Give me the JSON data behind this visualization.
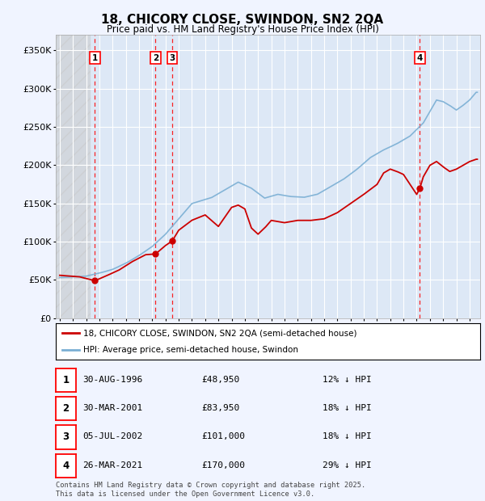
{
  "title": "18, CHICORY CLOSE, SWINDON, SN2 2QA",
  "subtitle": "Price paid vs. HM Land Registry's House Price Index (HPI)",
  "ylim": [
    0,
    370000
  ],
  "yticks": [
    0,
    50000,
    100000,
    150000,
    200000,
    250000,
    300000,
    350000
  ],
  "ytick_labels": [
    "£0",
    "£50K",
    "£100K",
    "£150K",
    "£200K",
    "£250K",
    "£300K",
    "£350K"
  ],
  "background_color": "#f0f4ff",
  "plot_bg_color": "#dde8f6",
  "sale_dates_num": [
    1996.66,
    2001.25,
    2002.51,
    2021.24
  ],
  "sale_prices": [
    48950,
    83950,
    101000,
    170000
  ],
  "sale_labels": [
    "1",
    "2",
    "3",
    "4"
  ],
  "sale_color": "#cc0000",
  "hpi_color": "#7aafd4",
  "legend_entries": [
    "18, CHICORY CLOSE, SWINDON, SN2 2QA (semi-detached house)",
    "HPI: Average price, semi-detached house, Swindon"
  ],
  "table_rows": [
    {
      "label": "1",
      "date": "30-AUG-1996",
      "price": "£48,950",
      "hpi": "12% ↓ HPI"
    },
    {
      "label": "2",
      "date": "30-MAR-2001",
      "price": "£83,950",
      "hpi": "18% ↓ HPI"
    },
    {
      "label": "3",
      "date": "05-JUL-2002",
      "price": "£101,000",
      "hpi": "18% ↓ HPI"
    },
    {
      "label": "4",
      "date": "26-MAR-2021",
      "price": "£170,000",
      "hpi": "29% ↓ HPI"
    }
  ],
  "footer": "Contains HM Land Registry data © Crown copyright and database right 2025.\nThis data is licensed under the Open Government Licence v3.0.",
  "xmin": 1993.7,
  "xmax": 2025.8,
  "hatch_end": 1996.3
}
